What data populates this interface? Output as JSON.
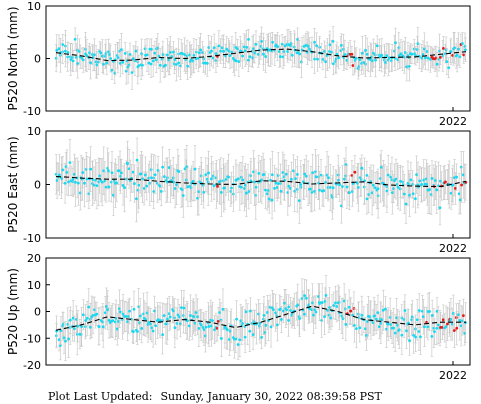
{
  "footer": {
    "label": "Plot Last Updated:",
    "value": "Sunday, January 30, 2022 08:39:58 PST"
  },
  "colors": {
    "point": "#19d9f0",
    "recent_point": "#e81919",
    "error_bar": "#c8c8c8",
    "trend": "#000000"
  },
  "chart_data": [
    {
      "type": "scatter",
      "ylabel": "P520 North (mm)",
      "ylim": [
        -10,
        10
      ],
      "yticks": [
        -10,
        0,
        10
      ],
      "xlabel": "",
      "x_tick_labels": [
        "2022"
      ],
      "grid": false,
      "legend": "none",
      "series": [
        {
          "role": "daily_positions",
          "mean": 0.5,
          "spread": 1.6,
          "error": 2.5
        },
        {
          "role": "recent_positions",
          "mean": 0.6,
          "spread": 1.3,
          "error": 2.0
        },
        {
          "role": "trend",
          "values": [
            1.1,
            0.5,
            -0.4,
            -0.3,
            0.2,
            0.0,
            0.4,
            1.0,
            1.6,
            1.8,
            1.3,
            0.5,
            0.1,
            0.2,
            0.3,
            0.8,
            1.3
          ]
        }
      ]
    },
    {
      "type": "scatter",
      "ylabel": "P520 East (mm)",
      "ylim": [
        -10,
        10
      ],
      "yticks": [
        -10,
        0,
        10
      ],
      "xlabel": "",
      "x_tick_labels": [
        "2022"
      ],
      "grid": false,
      "legend": "none",
      "series": [
        {
          "role": "daily_positions",
          "mean": 0.5,
          "spread": 2.0,
          "error": 3.5
        },
        {
          "role": "recent_positions",
          "mean": 1.0,
          "spread": 1.5,
          "error": 3.0
        },
        {
          "role": "trend",
          "values": [
            1.5,
            1.2,
            1.0,
            1.0,
            0.6,
            0.3,
            0.1,
            0.0,
            0.7,
            0.6,
            0.1,
            0.3,
            0.5,
            -0.1,
            -0.3,
            -0.4,
            0.6
          ]
        }
      ]
    },
    {
      "type": "scatter",
      "ylabel": "P520 Up (mm)",
      "ylim": [
        -20,
        20
      ],
      "yticks": [
        -20,
        -10,
        0,
        10,
        20
      ],
      "xlabel": "",
      "x_tick_labels": [
        "2022"
      ],
      "grid": false,
      "legend": "none",
      "series": [
        {
          "role": "daily_positions",
          "mean": -3.0,
          "spread": 4.0,
          "error": 6.0
        },
        {
          "role": "recent_positions",
          "mean": -3.5,
          "spread": 3.0,
          "error": 5.0
        },
        {
          "role": "trend",
          "values": [
            -7.0,
            -5.0,
            -2.0,
            -3.0,
            -4.0,
            -3.0,
            -4.0,
            -6.0,
            -4.0,
            -1.0,
            2.0,
            0.0,
            -3.0,
            -4.0,
            -5.0,
            -4.0,
            -4.0
          ]
        }
      ]
    }
  ]
}
